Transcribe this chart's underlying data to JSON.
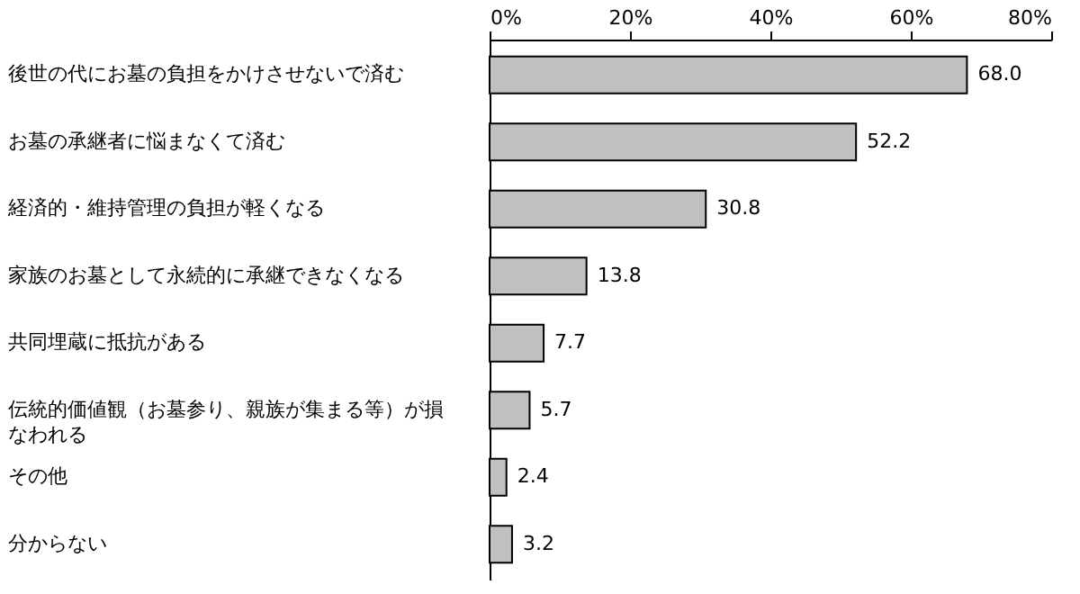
{
  "chart_data": {
    "type": "bar",
    "orientation": "horizontal",
    "categories": [
      "後世の代にお墓の負担をかけさせないで済む",
      "お墓の承継者に悩まなくて済む",
      "経済的・維持管理の負担が軽くなる",
      "家族のお墓として永続的に承継できなくなる",
      "共同埋蔵に抵抗がある",
      "伝統的価値観（お墓参り、親族が集まる等）が損なわれる",
      "その他",
      "分からない"
    ],
    "values": [
      68.0,
      52.2,
      30.8,
      13.8,
      7.7,
      5.7,
      2.4,
      3.2
    ],
    "color": "#c0c0c0",
    "xlim": [
      0,
      80
    ],
    "xticks": [
      {
        "value": 0,
        "label": "0%"
      },
      {
        "value": 20,
        "label": "20%"
      },
      {
        "value": 40,
        "label": "40%"
      },
      {
        "value": 60,
        "label": "60%"
      },
      {
        "value": 80,
        "label": "80%"
      }
    ],
    "value_labels": [
      "68.0",
      "52.2",
      "30.8",
      "13.8",
      "7.7",
      "5.7",
      "2.4",
      "3.2"
    ],
    "grid": false
  }
}
